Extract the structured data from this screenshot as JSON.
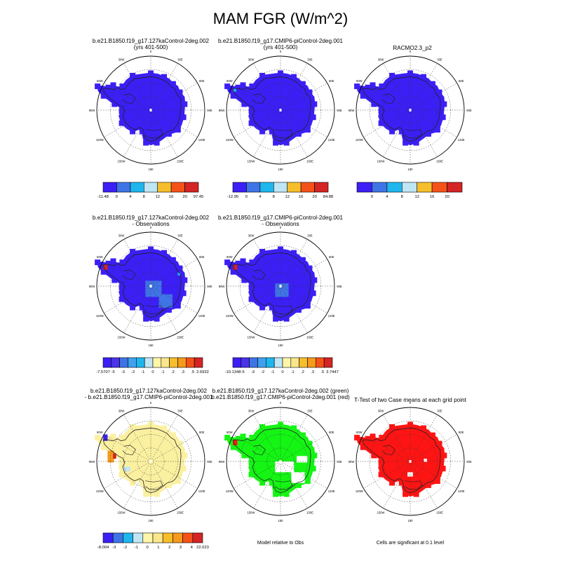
{
  "page": {
    "title": "MAM FGR (W/m^2)"
  },
  "colors": {
    "c0": "#3b1ff5",
    "c1": "#3f74e6",
    "c2": "#1fb6ee",
    "c3": "#bfe6f5",
    "c4": "#f5be2a",
    "c5": "#f5521a",
    "c6": "#d42424",
    "c7": "#ff1414",
    "c8": "#5f3ef2",
    "c9": "#fae68c",
    "c10": "#fff5a8",
    "c11": "#ffd600",
    "c12": "#f59a1a",
    "c13": "#14f514",
    "green": "#14f514",
    "red": "#ff1414",
    "pale_yellow": "#fbf0a0",
    "land_gray": "#cfcfcf"
  },
  "panels": [
    {
      "title_lines": [
        "b.e21.B1850.f19_g17.127kaControl-2deg.002",
        "(yrs 401-500)"
      ],
      "fill": "blue"
    },
    {
      "title_lines": [
        "b.e21.B1850.f19_g17.CMIP6-piControl-2deg.001",
        "(yrs 401-500)"
      ],
      "fill": "blue"
    },
    {
      "title_lines": [
        "RACMO2.3_p2"
      ],
      "fill": "blue"
    },
    {
      "title_lines": [
        "b.e21.B1850.f19_g17.127kaControl-2deg.002",
        "- Observations"
      ],
      "fill": "blue"
    },
    {
      "title_lines": [
        "b.e21.B1850.f19_g17.CMIP6-piControl-2deg.001",
        "- Observations"
      ],
      "fill": "blue"
    },
    {
      "title_lines": [
        "b.e21.B1850.f19_g17.127kaControl-2deg.002",
        "- b.e21.B1850.f19_g17.CMIP6-piControl-2deg.001"
      ],
      "fill": "yellow"
    },
    {
      "title_lines": [
        "b.e21.B1850.f19_g17.127kaControl-2deg.002 (green)",
        "b.e21.B1850.f19_g17.CMIP6-piControl-2deg.001 (red)"
      ],
      "fill": "green"
    },
    {
      "title_lines": [
        "T-Test of two Case means at each grid point"
      ],
      "fill": "red"
    }
  ],
  "lon_labels": [
    "0",
    "30E",
    "60E",
    "90E",
    "120E",
    "150E",
    "180",
    "150W",
    "120W",
    "90W",
    "60W",
    "30W"
  ],
  "colorbars": [
    {
      "labels": [
        "-11.48",
        "0",
        "4",
        "8",
        "12",
        "16",
        "20",
        "97.45"
      ],
      "colors": [
        "#3b1ff5",
        "#3f74e6",
        "#1fb6ee",
        "#bfe6f5",
        "#f5be2a",
        "#f5521a",
        "#d42424"
      ]
    },
    {
      "labels": [
        "-12.95",
        "0",
        "4",
        "8",
        "12",
        "16",
        "20",
        "84.88"
      ],
      "colors": [
        "#3b1ff5",
        "#3f74e6",
        "#1fb6ee",
        "#bfe6f5",
        "#f5be2a",
        "#f5521a",
        "#d42424"
      ]
    },
    {
      "labels": [
        "",
        "0",
        "4",
        "8",
        "12",
        "16",
        "20",
        ""
      ],
      "colors": [
        "#3b1ff5",
        "#3f74e6",
        "#1fb6ee",
        "#bfe6f5",
        "#f5be2a",
        "#f5521a",
        "#d42424"
      ]
    },
    {
      "labels": [
        "-7.5707",
        "-5",
        "-3",
        "-2",
        "-1",
        "0",
        ".1",
        ".2",
        ".3",
        ".5",
        "2.6932"
      ],
      "colors": [
        "#3b1ff5",
        "#4a33e8",
        "#3f74e6",
        "#3fa0ee",
        "#1fb6ee",
        "#bfe6f5",
        "#fff5a8",
        "#fae68c",
        "#f5be2a",
        "#f59a1a",
        "#f5521a",
        "#d42424"
      ]
    },
    {
      "labels": [
        "-10.1348",
        "-5",
        "-3",
        "-2",
        "-1",
        "0",
        ".1",
        ".2",
        ".3",
        ".5",
        "3.7447"
      ],
      "colors": [
        "#3b1ff5",
        "#4a33e8",
        "#3f74e6",
        "#3fa0ee",
        "#1fb6ee",
        "#bfe6f5",
        "#fff5a8",
        "#fae68c",
        "#f5be2a",
        "#f59a1a",
        "#f5521a",
        "#d42424"
      ]
    },
    {
      "labels": [
        "-8.004",
        "-3",
        "-2",
        "-1",
        "0",
        "1",
        "2",
        "3",
        "4",
        "22.023"
      ],
      "colors": [
        "#3b1ff5",
        "#3f74e6",
        "#1fb6ee",
        "#bfe6f5",
        "#fff5a8",
        "#fae68c",
        "#f5be2a",
        "#f59a1a",
        "#f5521a",
        "#d42424"
      ]
    }
  ],
  "notes": {
    "model_relative": "Model relative to Obs",
    "significance": "Cells are significant at 0.1 level"
  },
  "chart_data": {
    "type": "heatmap",
    "title": "MAM FGR (W/m^2)",
    "projection": "south polar stereographic",
    "variable": "FGR",
    "units": "W/m^2",
    "season": "MAM",
    "panels": [
      {
        "title": "b.e21.B1850.f19_g17.127kaControl-2deg.002 (yrs 401-500)",
        "colorbar_min": -11.48,
        "colorbar_max": 97.45,
        "levels": [
          0,
          4,
          8,
          12,
          16,
          20
        ]
      },
      {
        "title": "b.e21.B1850.f19_g17.CMIP6-piControl-2deg.001 (yrs 401-500)",
        "colorbar_min": -12.95,
        "colorbar_max": 84.88,
        "levels": [
          0,
          4,
          8,
          12,
          16,
          20
        ]
      },
      {
        "title": "RACMO2.3_p2",
        "levels": [
          0,
          4,
          8,
          12,
          16,
          20
        ]
      },
      {
        "title": "b.e21.B1850.f19_g17.127kaControl-2deg.002 - Observations",
        "colorbar_min": -7.5707,
        "colorbar_max": 2.6932,
        "levels": [
          -5,
          -3,
          -2,
          -1,
          0,
          0.1,
          0.2,
          0.3,
          0.5
        ]
      },
      {
        "title": "b.e21.B1850.f19_g17.CMIP6-piControl-2deg.001 - Observations",
        "colorbar_min": -10.1348,
        "colorbar_max": 3.7447,
        "levels": [
          -5,
          -3,
          -2,
          -1,
          0,
          0.1,
          0.2,
          0.3,
          0.5
        ]
      },
      {
        "title": "b.e21.B1850.f19_g17.127kaControl-2deg.002 - b.e21.B1850.f19_g17.CMIP6-piControl-2deg.001",
        "colorbar_min": -8.004,
        "colorbar_max": 22.023,
        "levels": [
          -3,
          -2,
          -1,
          0,
          1,
          2,
          3,
          4
        ]
      },
      {
        "title": "b.e21.B1850.f19_g17.127kaControl-2deg.002 (green) b.e21.B1850.f19_g17.CMIP6-piControl-2deg.001 (red)"
      },
      {
        "title": "T-Test of two Case means at each grid point"
      }
    ],
    "grid": true,
    "lon_ticks": [
      "0",
      "30E",
      "60E",
      "90E",
      "120E",
      "150E",
      "180",
      "150W",
      "120W",
      "90W",
      "60W",
      "30W"
    ]
  }
}
